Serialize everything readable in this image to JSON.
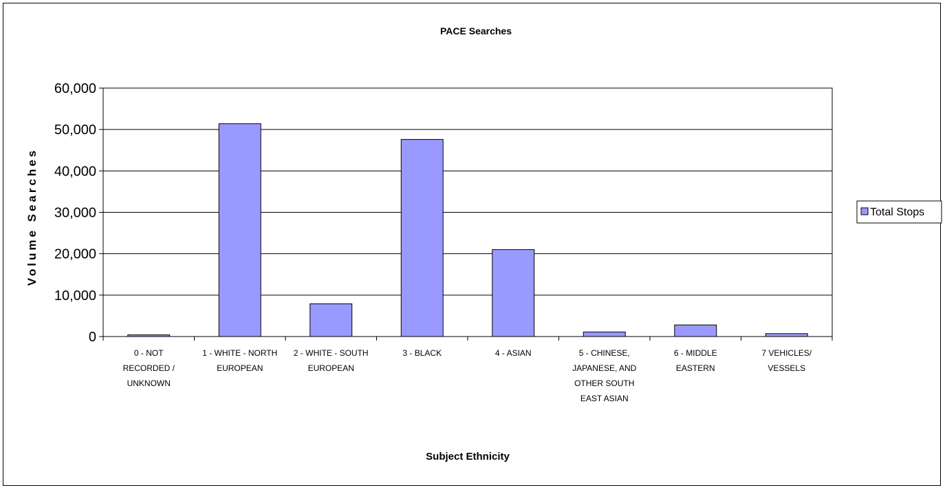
{
  "chart_data": {
    "type": "bar",
    "title": "PACE Searches",
    "xlabel": "Subject Ethnicity",
    "ylabel": "Volume Searches",
    "ylim": [
      0,
      60000
    ],
    "yticks": [
      "0",
      "10,000",
      "20,000",
      "30,000",
      "40,000",
      "50,000",
      "60,000"
    ],
    "grid": true,
    "legend_position": "right",
    "bar_color": "#9999ff",
    "categories": [
      [
        "0 - NOT",
        "RECORDED /",
        "UNKNOWN"
      ],
      [
        "1 - WHITE - NORTH",
        "EUROPEAN"
      ],
      [
        "2 - WHITE - SOUTH",
        "EUROPEAN"
      ],
      [
        "3 - BLACK"
      ],
      [
        "4 - ASIAN"
      ],
      [
        "5 - CHINESE,",
        "JAPANESE, AND",
        "OTHER SOUTH",
        "EAST ASIAN"
      ],
      [
        "6 - MIDDLE",
        "EASTERN"
      ],
      [
        "7 VEHICLES/",
        "VESSELS"
      ]
    ],
    "series": [
      {
        "name": "Total Stops",
        "values": [
          400,
          51400,
          7900,
          47600,
          21000,
          1100,
          2800,
          700
        ]
      }
    ]
  }
}
